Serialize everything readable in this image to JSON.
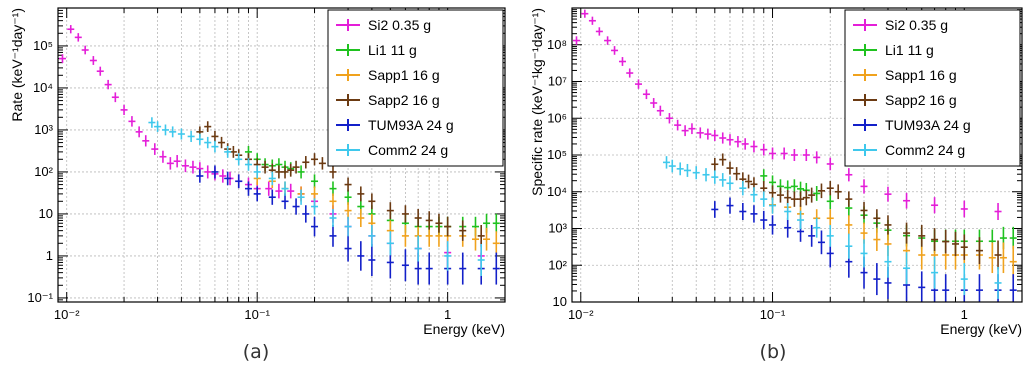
{
  "colors": {
    "Si2": "#e41ed8",
    "Li1": "#1fc21f",
    "Sapp1": "#f0a21d",
    "Sapp2": "#6b3a12",
    "TUM93A": "#1320c9",
    "Comm2": "#3fc8ec"
  },
  "chart_data": [
    {
      "type": "scatter",
      "panel_label": "(a)",
      "xlabel": "Energy (keV)",
      "ylabel": "Rate (keV⁻¹day⁻¹)",
      "log_x": true,
      "log_y": true,
      "xlim": [
        0.009,
        2.0
      ],
      "ylim": [
        0.08,
        800000
      ],
      "grid": true,
      "legend_position": "top-right",
      "x_ticks": [
        "10⁻²",
        "10⁻¹",
        "1"
      ],
      "y_ticks": [
        "10⁻¹",
        "1",
        "10",
        "10²",
        "10³",
        "10⁴",
        "10⁵"
      ],
      "series": [
        {
          "name": "Si2 0.35 g",
          "key": "Si2",
          "x": [
            0.0095,
            0.0105,
            0.0115,
            0.0125,
            0.0138,
            0.015,
            0.0165,
            0.018,
            0.02,
            0.022,
            0.024,
            0.026,
            0.029,
            0.032,
            0.035,
            0.038,
            0.042,
            0.046,
            0.05,
            0.055,
            0.06,
            0.066,
            0.072,
            0.08,
            0.09,
            0.1,
            0.115,
            0.13,
            0.15,
            0.17,
            0.2,
            0.25,
            0.3,
            0.4,
            0.5,
            0.7,
            1.0,
            1.5
          ],
          "y": [
            50000,
            250000,
            160000,
            80000,
            45000,
            25000,
            12000,
            6000,
            3000,
            1600,
            900,
            550,
            350,
            230,
            160,
            180,
            140,
            130,
            120,
            100,
            90,
            80,
            70,
            60,
            50,
            40,
            40,
            35,
            35,
            30,
            20,
            10,
            5,
            3,
            2,
            1.5,
            1.2,
            1.0
          ]
        },
        {
          "name": "Li1 11 g",
          "key": "Li1",
          "x": [
            0.09,
            0.1,
            0.11,
            0.12,
            0.13,
            0.14,
            0.15,
            0.17,
            0.2,
            0.25,
            0.3,
            0.35,
            0.4,
            0.5,
            0.6,
            0.7,
            0.8,
            0.9,
            1.0,
            1.2,
            1.4,
            1.6,
            1.8
          ],
          "y": [
            300,
            200,
            150,
            140,
            150,
            130,
            120,
            100,
            60,
            40,
            25,
            15,
            10,
            7,
            6,
            5,
            5,
            5,
            5,
            5,
            5,
            6,
            6
          ]
        },
        {
          "name": "Sapp1 16 g",
          "key": "Sapp1",
          "x": [
            0.1,
            0.12,
            0.14,
            0.17,
            0.2,
            0.25,
            0.3,
            0.35,
            0.4,
            0.5,
            0.6,
            0.7,
            0.8,
            0.9,
            1.0,
            1.2,
            1.4,
            1.6,
            1.8
          ],
          "y": [
            70,
            60,
            40,
            30,
            30,
            20,
            12,
            8,
            6,
            4,
            3,
            3,
            3,
            3,
            3,
            3,
            2.5,
            2.5,
            2
          ]
        },
        {
          "name": "Sapp2 16 g",
          "key": "Sapp2",
          "x": [
            0.05,
            0.055,
            0.06,
            0.065,
            0.07,
            0.075,
            0.08,
            0.09,
            0.1,
            0.11,
            0.12,
            0.13,
            0.14,
            0.15,
            0.16,
            0.18,
            0.2,
            0.22,
            0.25,
            0.3,
            0.35,
            0.4,
            0.5,
            0.6,
            0.7,
            0.8,
            0.9,
            1.0,
            1.2,
            1.5
          ],
          "y": [
            900,
            1200,
            700,
            500,
            350,
            300,
            250,
            200,
            150,
            130,
            110,
            100,
            100,
            110,
            130,
            170,
            200,
            160,
            100,
            50,
            30,
            20,
            12,
            10,
            8,
            7,
            6,
            5,
            4,
            3
          ]
        },
        {
          "name": "TUM93A 24 g",
          "key": "TUM93A",
          "x": [
            0.05,
            0.06,
            0.07,
            0.08,
            0.09,
            0.1,
            0.12,
            0.14,
            0.16,
            0.18,
            0.2,
            0.25,
            0.3,
            0.35,
            0.4,
            0.5,
            0.6,
            0.7,
            0.8,
            1.0,
            1.2,
            1.5,
            1.8
          ],
          "y": [
            80,
            100,
            70,
            60,
            40,
            30,
            25,
            20,
            15,
            10,
            5,
            3,
            1.5,
            1,
            0.8,
            0.7,
            0.6,
            0.5,
            0.5,
            0.5,
            0.5,
            0.5,
            0.5
          ]
        },
        {
          "name": "Comm2 24 g",
          "key": "Comm2",
          "x": [
            0.028,
            0.03,
            0.033,
            0.036,
            0.04,
            0.045,
            0.05,
            0.055,
            0.06,
            0.07,
            0.08,
            0.09,
            0.1,
            0.12,
            0.14,
            0.17,
            0.2,
            0.25,
            0.3,
            0.4,
            0.5,
            0.7,
            1.0,
            1.5
          ],
          "y": [
            1500,
            1200,
            1000,
            900,
            800,
            700,
            600,
            500,
            400,
            300,
            200,
            150,
            100,
            70,
            40,
            25,
            15,
            8,
            5,
            3,
            2,
            1.5,
            1.0,
            0.8
          ]
        }
      ]
    },
    {
      "type": "scatter",
      "panel_label": "(b)",
      "xlabel": "Energy (keV)",
      "ylabel": "Specific rate (keV⁻¹kg⁻¹day⁻¹)",
      "log_x": true,
      "log_y": true,
      "xlim": [
        0.009,
        2.0
      ],
      "ylim": [
        10,
        1000000000
      ],
      "grid": true,
      "legend_position": "top-right",
      "x_ticks": [
        "10⁻²",
        "10⁻¹",
        "1"
      ],
      "y_ticks": [
        "10",
        "10²",
        "10³",
        "10⁴",
        "10⁵",
        "10⁶",
        "10⁷",
        "10⁸"
      ],
      "series": [
        {
          "name": "Si2 0.35 g",
          "key": "Si2",
          "x": [
            0.0095,
            0.0105,
            0.0115,
            0.0125,
            0.0138,
            0.015,
            0.0165,
            0.018,
            0.02,
            0.022,
            0.024,
            0.026,
            0.029,
            0.032,
            0.035,
            0.038,
            0.042,
            0.046,
            0.05,
            0.055,
            0.06,
            0.066,
            0.072,
            0.08,
            0.09,
            0.1,
            0.115,
            0.13,
            0.15,
            0.17,
            0.2,
            0.25,
            0.3,
            0.4,
            0.5,
            0.7,
            1.0,
            1.5
          ],
          "y": [
            130000000,
            700000000,
            450000000,
            230000000,
            130000000,
            70000000,
            35000000,
            17000000,
            8500000,
            4500000,
            2600000,
            1600000,
            1000000,
            650000,
            460000,
            520000,
            400000,
            370000,
            340000,
            290000,
            260000,
            230000,
            200000,
            170000,
            140000,
            110000,
            110000,
            100000,
            100000,
            86000,
            57000,
            29000,
            14000,
            8600,
            5700,
            4300,
            3400,
            2900
          ]
        },
        {
          "name": "Li1 11 g",
          "key": "Li1",
          "x": [
            0.09,
            0.1,
            0.11,
            0.12,
            0.13,
            0.14,
            0.15,
            0.17,
            0.2,
            0.25,
            0.3,
            0.35,
            0.4,
            0.5,
            0.6,
            0.7,
            0.8,
            0.9,
            1.0,
            1.2,
            1.4,
            1.6,
            1.8
          ],
          "y": [
            27000,
            18000,
            14000,
            13000,
            14000,
            12000,
            11000,
            9000,
            5500,
            3600,
            2300,
            1400,
            900,
            640,
            550,
            450,
            450,
            450,
            450,
            450,
            450,
            550,
            550
          ]
        },
        {
          "name": "Sapp1 16 g",
          "key": "Sapp1",
          "x": [
            0.1,
            0.12,
            0.14,
            0.17,
            0.2,
            0.25,
            0.3,
            0.35,
            0.4,
            0.5,
            0.6,
            0.7,
            0.8,
            0.9,
            1.0,
            1.2,
            1.4,
            1.6,
            1.8
          ],
          "y": [
            4400,
            3800,
            2500,
            1900,
            1900,
            1250,
            750,
            500,
            380,
            250,
            190,
            190,
            190,
            190,
            190,
            190,
            160,
            160,
            125
          ]
        },
        {
          "name": "Sapp2 16 g",
          "key": "Sapp2",
          "x": [
            0.05,
            0.055,
            0.06,
            0.065,
            0.07,
            0.075,
            0.08,
            0.09,
            0.1,
            0.11,
            0.12,
            0.13,
            0.14,
            0.15,
            0.16,
            0.18,
            0.2,
            0.22,
            0.25,
            0.3,
            0.35,
            0.4,
            0.5,
            0.6,
            0.7,
            0.8,
            0.9,
            1.0,
            1.2,
            1.5
          ],
          "y": [
            56000,
            75000,
            44000,
            31000,
            22000,
            19000,
            16000,
            12500,
            9400,
            8100,
            6900,
            6300,
            6300,
            6900,
            8100,
            10600,
            12500,
            10000,
            6300,
            3100,
            1900,
            1250,
            750,
            630,
            500,
            440,
            380,
            310,
            250,
            190
          ]
        },
        {
          "name": "TUM93A 24 g",
          "key": "TUM93A",
          "x": [
            0.05,
            0.06,
            0.07,
            0.08,
            0.09,
            0.1,
            0.12,
            0.14,
            0.16,
            0.18,
            0.2,
            0.25,
            0.3,
            0.35,
            0.4,
            0.5,
            0.6,
            0.7,
            0.8,
            1.0,
            1.2,
            1.5,
            1.8
          ],
          "y": [
            3300,
            4200,
            2900,
            2500,
            1700,
            1250,
            1050,
            830,
            630,
            420,
            210,
            125,
            63,
            42,
            33,
            29,
            25,
            21,
            21,
            21,
            21,
            21,
            21
          ]
        },
        {
          "name": "Comm2 24 g",
          "key": "Comm2",
          "x": [
            0.028,
            0.03,
            0.033,
            0.036,
            0.04,
            0.045,
            0.05,
            0.055,
            0.06,
            0.07,
            0.08,
            0.09,
            0.1,
            0.12,
            0.14,
            0.17,
            0.2,
            0.25,
            0.3,
            0.4,
            0.5,
            0.7,
            1.0,
            1.5
          ],
          "y": [
            63000,
            50000,
            42000,
            38000,
            33000,
            29000,
            25000,
            21000,
            17000,
            12500,
            8300,
            6300,
            4200,
            2900,
            1700,
            1050,
            630,
            330,
            210,
            125,
            83,
            63,
            42,
            33
          ]
        }
      ]
    }
  ]
}
